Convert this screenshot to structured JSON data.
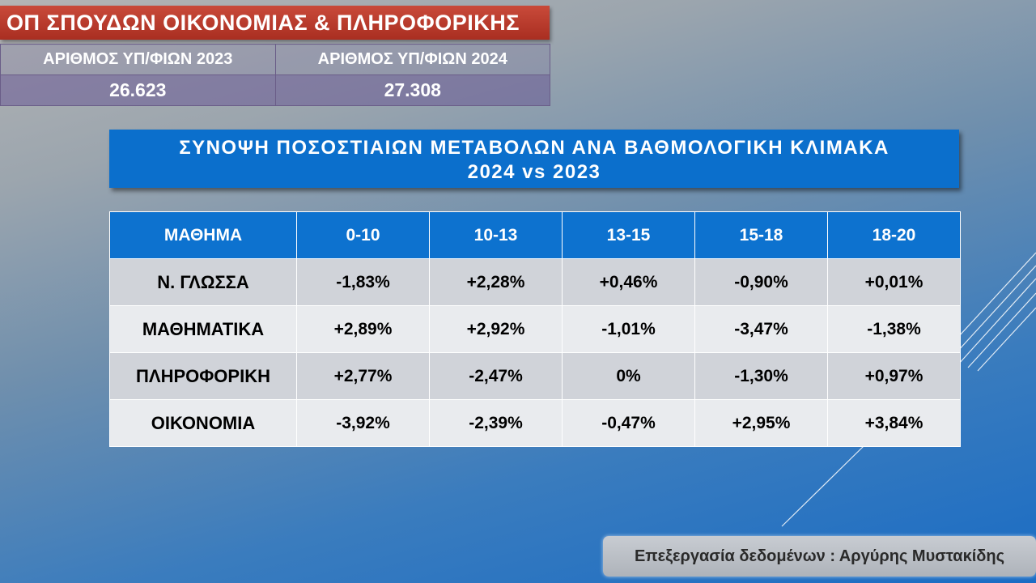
{
  "program_title": "ΟΠ ΣΠΟΥΔΩΝ ΟΙΚΟΝΟΜΙΑΣ & ΠΛΗΡΟΦΟΡΙΚΗΣ",
  "student_counts": {
    "header_2023": "ΑΡΙΘΜΟΣ ΥΠ/ΦΙΩΝ 2023",
    "header_2024": "ΑΡΙΘΜΟΣ ΥΠ/ΦΙΩΝ 2024",
    "value_2023": "26.623",
    "value_2024": "27.308"
  },
  "summary": {
    "line1": "ΣΥΝΟΨΗ ΠΟΣΟΣΤΙΑΙΩΝ ΜΕΤΑΒΟΛΩΝ ΑΝΑ ΒΑΘΜΟΛΟΓΙΚΗ ΚΛΙΜΑΚΑ",
    "line2": "2024 vs 2023"
  },
  "table": {
    "headers": [
      "ΜΑΘΗΜΑ",
      "0-10",
      "10-13",
      "13-15",
      "15-18",
      "18-20"
    ],
    "rows": [
      [
        "Ν. ΓΛΩΣΣΑ",
        "-1,83%",
        "+2,28%",
        "+0,46%",
        "-0,90%",
        "+0,01%"
      ],
      [
        "ΜΑΘΗΜΑΤΙΚΑ",
        "+2,89%",
        "+2,92%",
        "-1,01%",
        "-3,47%",
        "-1,38%"
      ],
      [
        "ΠΛΗΡΟΦΟΡΙΚΗ",
        "+2,77%",
        "-2,47%",
        "0%",
        "-1,30%",
        "+0,97%"
      ],
      [
        "ΟΙΚΟΝΟΜΙΑ",
        "-3,92%",
        "-2,39%",
        "-0,47%",
        "+2,95%",
        "+3,84%"
      ]
    ]
  },
  "credit": "Επεξεργασία δεδομένων : Αργύρης Μυστακίδης",
  "colors": {
    "title_red": "#b03a2e",
    "header_blue": "#0d72cf",
    "row_odd": "#d0d3d9",
    "row_even": "#e9ebee"
  }
}
